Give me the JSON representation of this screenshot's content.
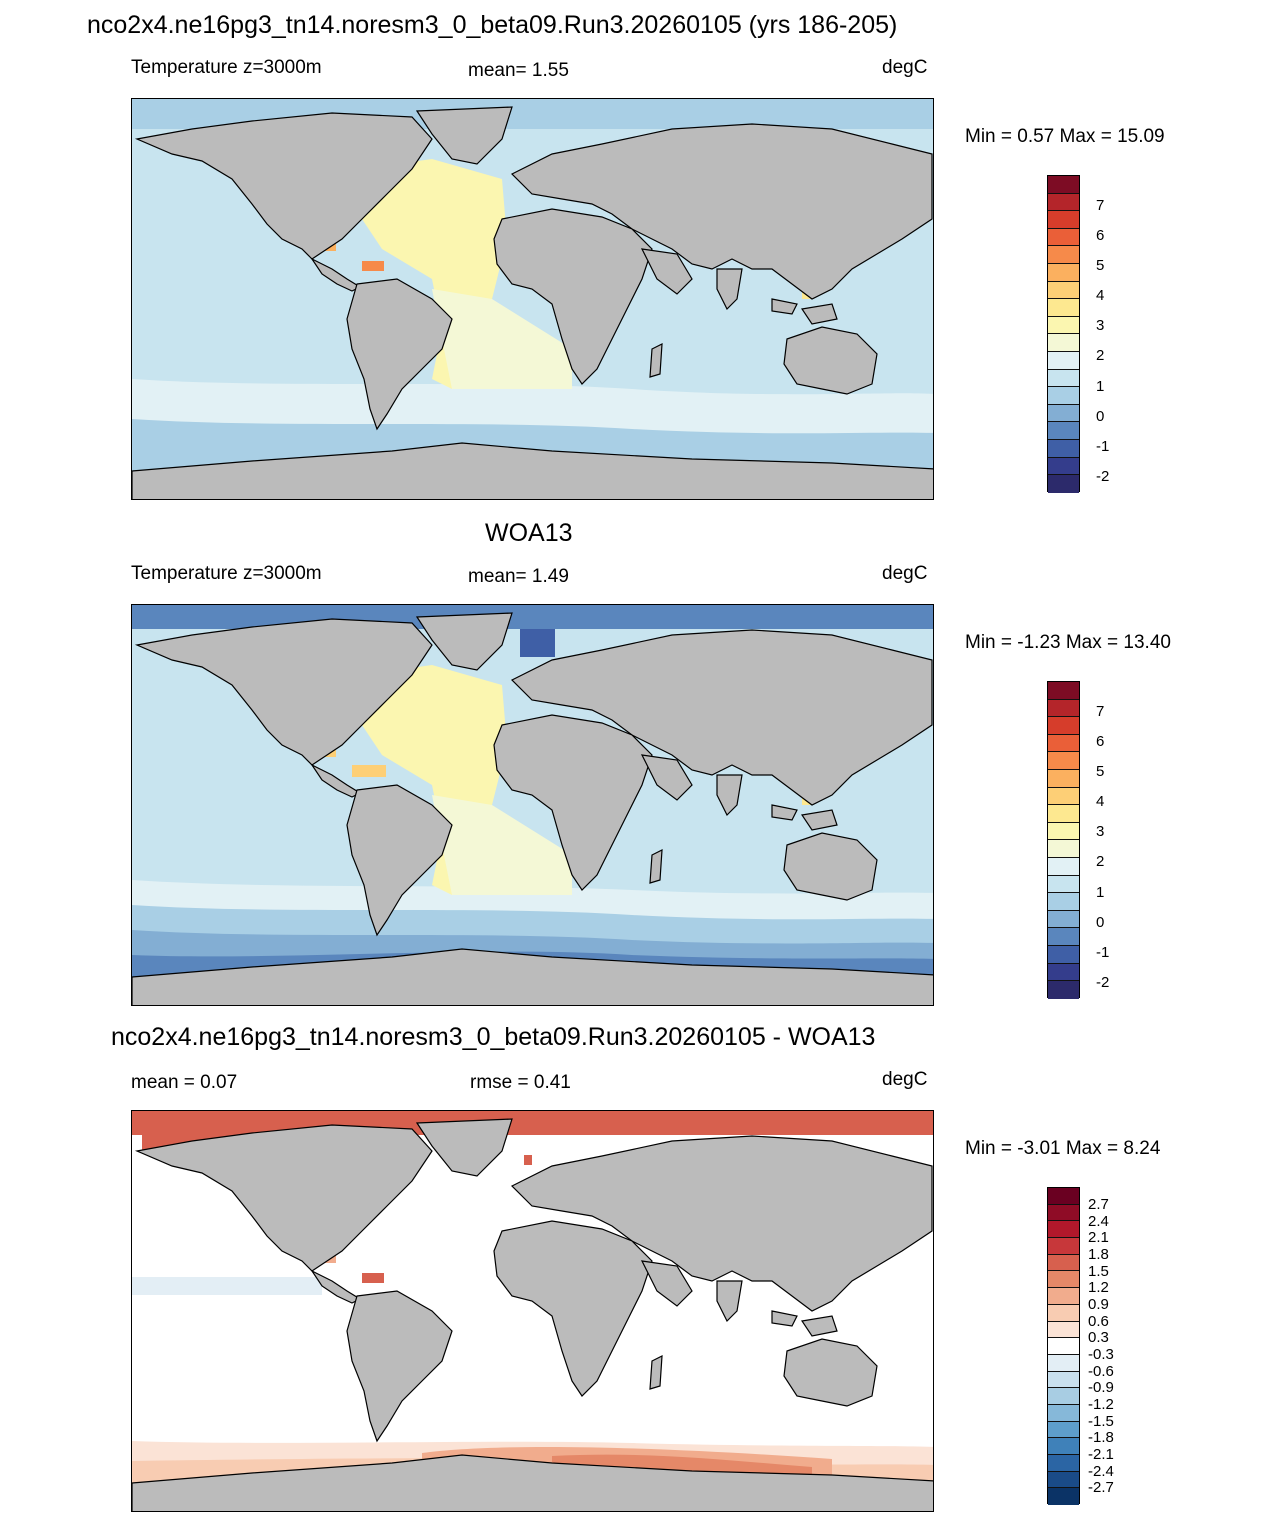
{
  "page": {
    "title": "nco2x4.ne16pg3_tn14.noresm3_0_beta09.Run3.20260105 (yrs 186-205)"
  },
  "panels": [
    {
      "title": "",
      "left_label": "Temperature z=3000m",
      "center_label": "mean=   1.55",
      "right_label": "degC",
      "minmax": "Min =   0.57 Max =  15.09",
      "colorbar": {
        "colors": [
          "#2c2a6b",
          "#343d8c",
          "#3f5fa6",
          "#5a86bd",
          "#83aed3",
          "#a9cfe5",
          "#c8e4ef",
          "#e2f1f5",
          "#f4f8d6",
          "#fbf6b0",
          "#fde890",
          "#fdcf76",
          "#fbb05f",
          "#f68a4a",
          "#ea5f38",
          "#d63d2b",
          "#b4252a",
          "#7d0c24"
        ],
        "labels": [
          "7",
          "6",
          "5",
          "4",
          "3",
          "2",
          "1",
          "0",
          "-1",
          "-2"
        ]
      }
    },
    {
      "title": "WOA13",
      "left_label": "Temperature z=3000m",
      "center_label": "mean=   1.49",
      "right_label": "degC",
      "minmax": "Min =  -1.23 Max =  13.40",
      "colorbar": {
        "colors": [
          "#2c2a6b",
          "#343d8c",
          "#3f5fa6",
          "#5a86bd",
          "#83aed3",
          "#a9cfe5",
          "#c8e4ef",
          "#e2f1f5",
          "#f4f8d6",
          "#fbf6b0",
          "#fde890",
          "#fdcf76",
          "#fbb05f",
          "#f68a4a",
          "#ea5f38",
          "#d63d2b",
          "#b4252a",
          "#7d0c24"
        ],
        "labels": [
          "7",
          "6",
          "5",
          "4",
          "3",
          "2",
          "1",
          "0",
          "-1",
          "-2"
        ]
      }
    },
    {
      "title": "nco2x4.ne16pg3_tn14.noresm3_0_beta09.Run3.20260105 - WOA13",
      "left_label": "mean =   0.07",
      "center_label": "rmse =   0.41",
      "right_label": "degC",
      "minmax": "Min =  -3.01 Max =   8.24",
      "colorbar": {
        "colors": [
          "#6a0021",
          "#8f0c26",
          "#b1182b",
          "#c7373a",
          "#d7604e",
          "#e58868",
          "#f1ac8d",
          "#f8ccb2",
          "#fbe3d6",
          "#ffffff",
          "#e3eef5",
          "#c9e0ee",
          "#a8cde3",
          "#86b8d9",
          "#5e9ecb",
          "#3f81b9",
          "#2b65a4",
          "#1a4b88",
          "#0b3366"
        ],
        "labels": [
          "2.7",
          "2.4",
          "2.1",
          "1.8",
          "1.5",
          "1.2",
          "0.9",
          "0.6",
          "0.3",
          "-0.3",
          "-0.6",
          "-0.9",
          "-1.2",
          "-1.5",
          "-1.8",
          "-2.1",
          "-2.4",
          "-2.7"
        ]
      }
    }
  ]
}
